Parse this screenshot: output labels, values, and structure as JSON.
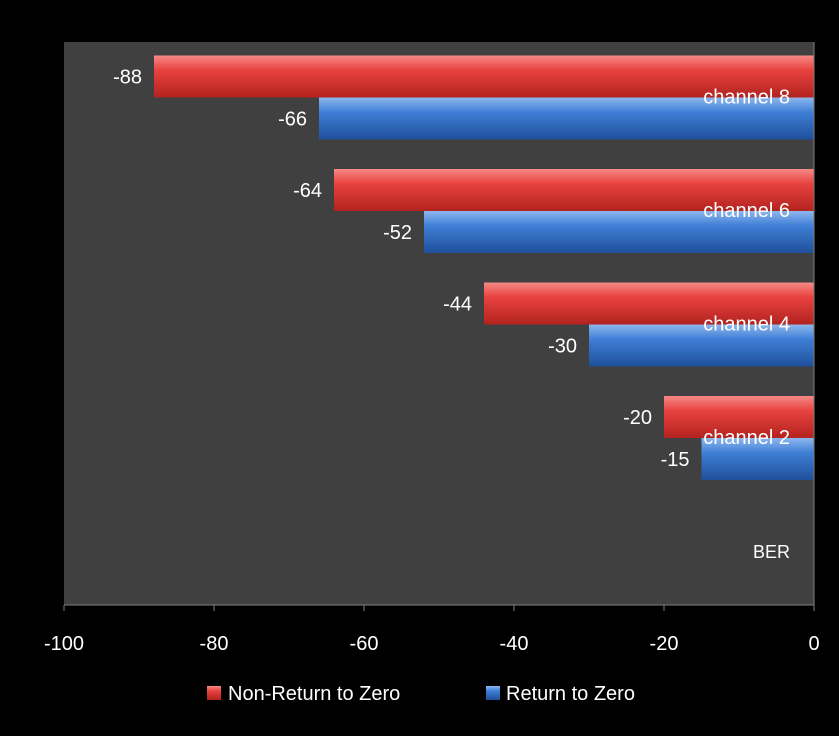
{
  "chart_data": {
    "type": "bar",
    "orientation": "horizontal",
    "categories": [
      "channel 2",
      "channel 4",
      "channel 6",
      "channel 8"
    ],
    "series": [
      {
        "name": "Non-Return to Zero",
        "values": [
          -20,
          -44,
          -64,
          -88
        ],
        "color": "#e8423f"
      },
      {
        "name": "Return to Zero",
        "values": [
          -15,
          -30,
          -52,
          -66
        ],
        "color": "#3f7fd6"
      }
    ],
    "annotation": "BER",
    "xlim": [
      -100,
      0
    ],
    "xticks": [
      "-100",
      "-80",
      "-60",
      "-40",
      "-20",
      "0"
    ],
    "grid": false,
    "legend": "bottom",
    "plot_background": "#404040",
    "background": "#000000"
  }
}
